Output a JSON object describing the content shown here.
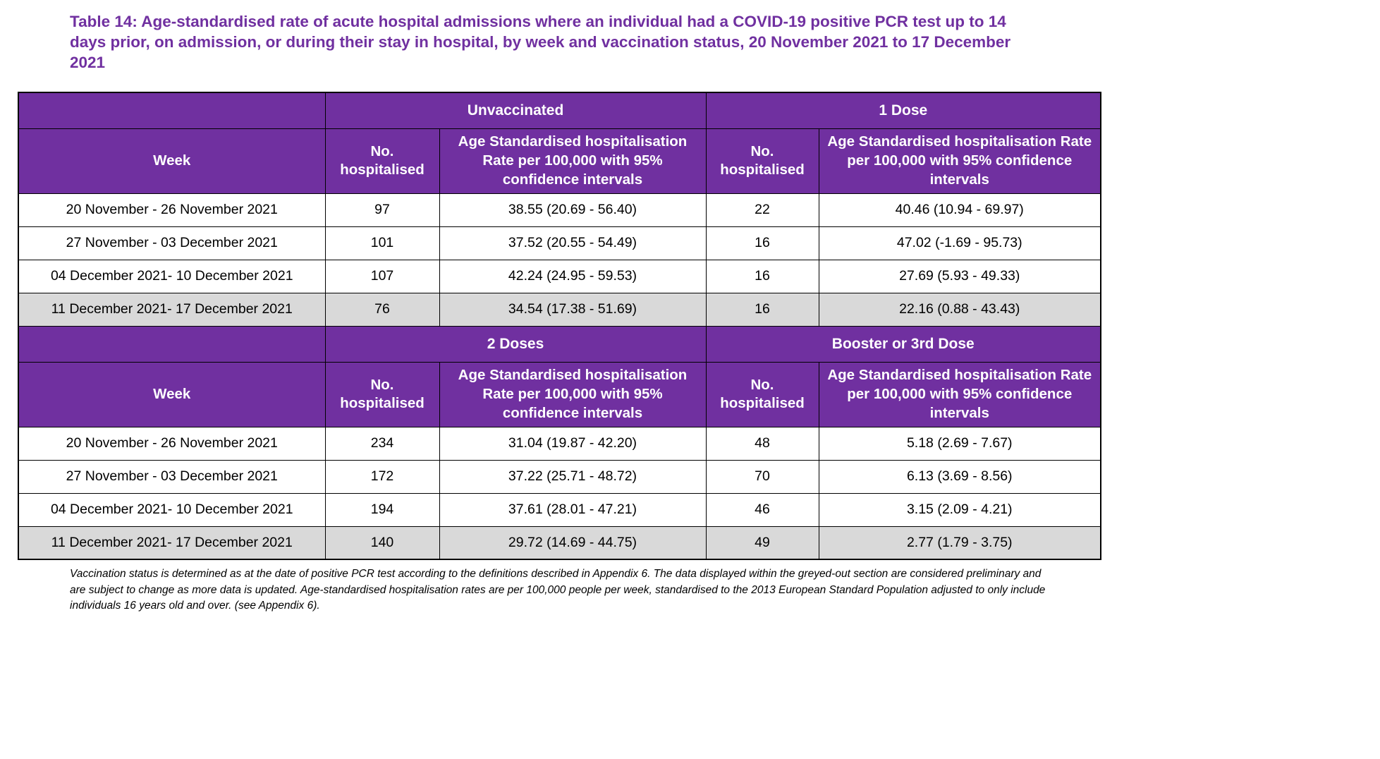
{
  "page": {
    "title": "Table 14: Age-standardised rate of acute hospital admissions where an individual had a COVID-19 positive PCR test up to 14 days prior, on admission, or during their stay in hospital, by week and vaccination status, 20 November 2021 to 17 December 2021",
    "footnote": "Vaccination status is determined as at the date of positive PCR test according to the definitions described in Appendix 6. The data displayed within the greyed-out section are considered preliminary and are subject to change as more data is updated. Age-standardised hospitalisation rates are per 100,000 people per week, standardised to the 2013 European Standard Population adjusted to only include individuals 16 years old and over. (see Appendix 6)."
  },
  "colors": {
    "header_bg": "#7030A0",
    "header_text": "#FFFFFF",
    "title_text": "#7030A0",
    "grey_row_bg": "#D9D9D9",
    "border": "#000000",
    "page_bg": "#FFFFFF"
  },
  "table": {
    "sections": [
      {
        "group_headers": [
          "Unvaccinated",
          "1 Dose"
        ],
        "column_headers": [
          "Week",
          "No. hospitalised",
          "Age Standardised hospitalisation Rate per 100,000 with 95% confidence intervals",
          "No. hospitalised",
          "Age Standardised hospitalisation Rate per 100,000 with 95% confidence intervals"
        ],
        "rows": [
          {
            "week": "20 November - 26 November 2021",
            "values": [
              "97",
              "38.55 (20.69 - 56.40)",
              "22",
              "40.46 (10.94 - 69.97)"
            ],
            "grey": false
          },
          {
            "week": "27 November - 03 December 2021",
            "values": [
              "101",
              "37.52 (20.55 - 54.49)",
              "16",
              "47.02 (-1.69 - 95.73)"
            ],
            "grey": false
          },
          {
            "week": "04 December 2021- 10 December 2021",
            "values": [
              "107",
              "42.24 (24.95 - 59.53)",
              "16",
              "27.69 (5.93 - 49.33)"
            ],
            "grey": false
          },
          {
            "week": "11 December 2021- 17 December 2021",
            "values": [
              "76",
              "34.54 (17.38 - 51.69)",
              "16",
              "22.16 (0.88 - 43.43)"
            ],
            "grey": true
          }
        ]
      },
      {
        "group_headers": [
          "2 Doses",
          "Booster or 3rd Dose"
        ],
        "column_headers": [
          "Week",
          "No. hospitalised",
          "Age Standardised hospitalisation Rate per 100,000 with 95% confidence intervals",
          "No. hospitalised",
          "Age Standardised hospitalisation Rate per 100,000 with 95% confidence intervals"
        ],
        "rows": [
          {
            "week": "20 November - 26 November 2021",
            "values": [
              "234",
              "31.04 (19.87 - 42.20)",
              "48",
              "5.18 (2.69 - 7.67)"
            ],
            "grey": false
          },
          {
            "week": "27 November - 03 December 2021",
            "values": [
              "172",
              "37.22 (25.71 - 48.72)",
              "70",
              "6.13 (3.69 - 8.56)"
            ],
            "grey": false
          },
          {
            "week": "04 December 2021- 10 December 2021",
            "values": [
              "194",
              "37.61 (28.01 - 47.21)",
              "46",
              "3.15 (2.09 - 4.21)"
            ],
            "grey": false
          },
          {
            "week": "11 December 2021- 17 December 2021",
            "values": [
              "140",
              "29.72 (14.69 - 44.75)",
              "49",
              "2.77 (1.79 - 3.75)"
            ],
            "grey": true
          }
        ]
      }
    ]
  }
}
